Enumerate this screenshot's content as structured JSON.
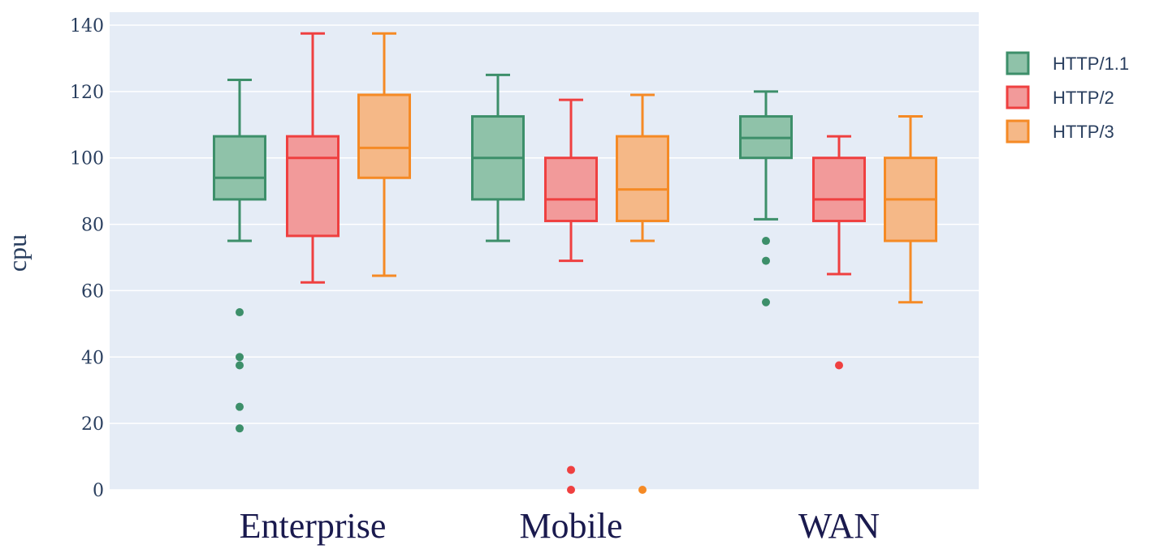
{
  "chart_data": {
    "type": "box",
    "ylabel": "cpu",
    "ylim": [
      0,
      140
    ],
    "yticks": [
      "0",
      "20",
      "40",
      "60",
      "80",
      "100",
      "120",
      "140"
    ],
    "categories": [
      "Enterprise",
      "Mobile",
      "WAN"
    ],
    "grid": true,
    "legend_position": "right",
    "background_color": "#e5ecf6",
    "series": [
      {
        "name": "HTTP/1.1",
        "stroke": "#3d8f6a",
        "fill": "#8fc2a9",
        "boxes": [
          {
            "category": "Enterprise",
            "min": 75,
            "q1": 87.5,
            "median": 94,
            "q3": 106.5,
            "max": 123.5,
            "outliers": [
              53.5,
              40,
              37.5,
              25,
              18.5
            ]
          },
          {
            "category": "Mobile",
            "min": 75,
            "q1": 87.5,
            "median": 100,
            "q3": 112.5,
            "max": 125,
            "outliers": []
          },
          {
            "category": "WAN",
            "min": 81.5,
            "q1": 100,
            "median": 106,
            "q3": 112.5,
            "max": 120,
            "outliers": [
              75,
              69,
              56.5
            ]
          }
        ]
      },
      {
        "name": "HTTP/2",
        "stroke": "#ef4040",
        "fill": "#f29a9a",
        "boxes": [
          {
            "category": "Enterprise",
            "min": 62.5,
            "q1": 76.5,
            "median": 100,
            "q3": 106.5,
            "max": 137.5,
            "outliers": []
          },
          {
            "category": "Mobile",
            "min": 69,
            "q1": 81,
            "median": 87.5,
            "q3": 100,
            "max": 117.5,
            "outliers": [
              6,
              0
            ]
          },
          {
            "category": "WAN",
            "min": 65,
            "q1": 81,
            "median": 87.5,
            "q3": 100,
            "max": 106.5,
            "outliers": [
              37.5
            ]
          }
        ]
      },
      {
        "name": "HTTP/3",
        "stroke": "#f58a25",
        "fill": "#f5b887",
        "boxes": [
          {
            "category": "Enterprise",
            "min": 64.5,
            "q1": 94,
            "median": 103,
            "q3": 119,
            "max": 137.5,
            "outliers": []
          },
          {
            "category": "Mobile",
            "min": 75,
            "q1": 81,
            "median": 90.5,
            "q3": 106.5,
            "max": 119,
            "outliers": [
              0
            ]
          },
          {
            "category": "WAN",
            "min": 56.5,
            "q1": 75,
            "median": 87.5,
            "q3": 100,
            "max": 112.5,
            "outliers": []
          }
        ]
      }
    ]
  }
}
